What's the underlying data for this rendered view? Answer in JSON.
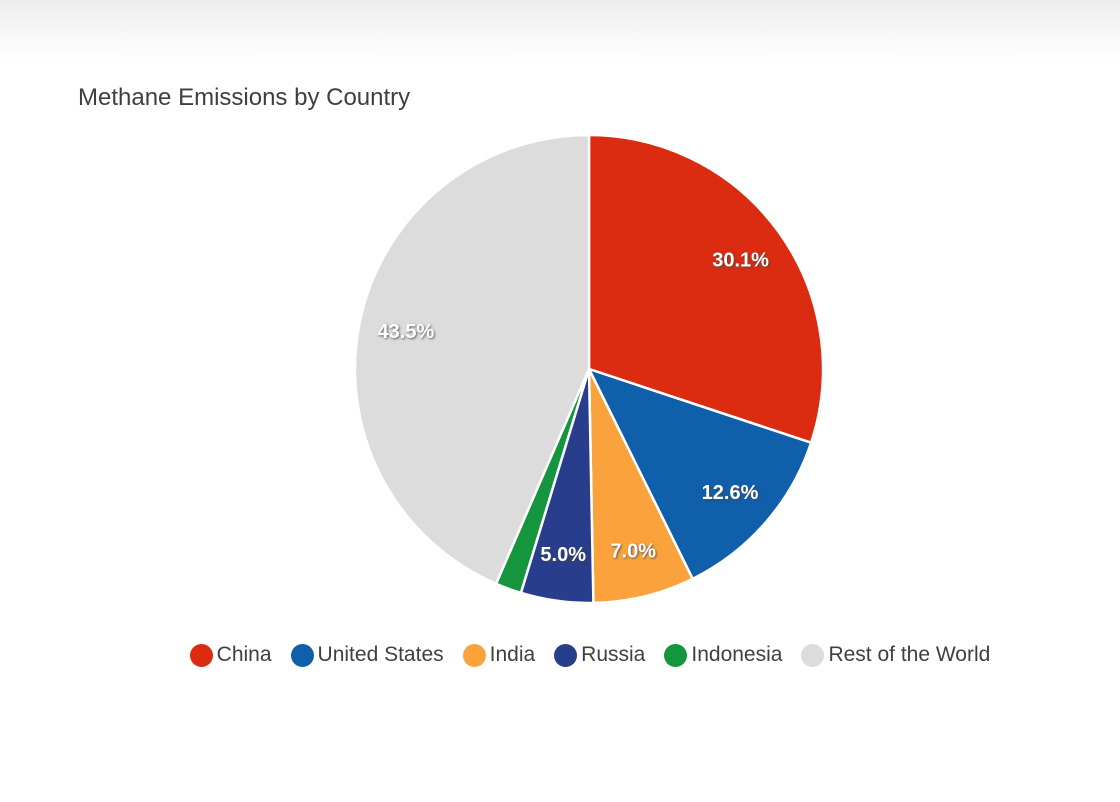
{
  "page": {
    "title": "Methane Emissions by Country"
  },
  "chart_data": {
    "type": "pie",
    "title": "Methane Emissions by Country",
    "unit": "percent",
    "start_angle_deg": 0,
    "direction": "clockwise",
    "legend_position": "bottom",
    "slice_label_color": "#ffffff",
    "slices": [
      {
        "label": "China",
        "value": 30.1,
        "display": "30.1%",
        "color": "#db2b10"
      },
      {
        "label": "United States",
        "value": 12.6,
        "display": "12.6%",
        "color": "#0f5fab"
      },
      {
        "label": "India",
        "value": 7.0,
        "display": "7.0%",
        "color": "#faa33c"
      },
      {
        "label": "Russia",
        "value": 5.0,
        "display": "5.0%",
        "color": "#283d8c"
      },
      {
        "label": "Indonesia",
        "value": 1.8,
        "display": "",
        "color": "#14953e"
      },
      {
        "label": "Rest of the World",
        "value": 43.5,
        "display": "43.5%",
        "color": "#dcdcdc"
      }
    ]
  }
}
